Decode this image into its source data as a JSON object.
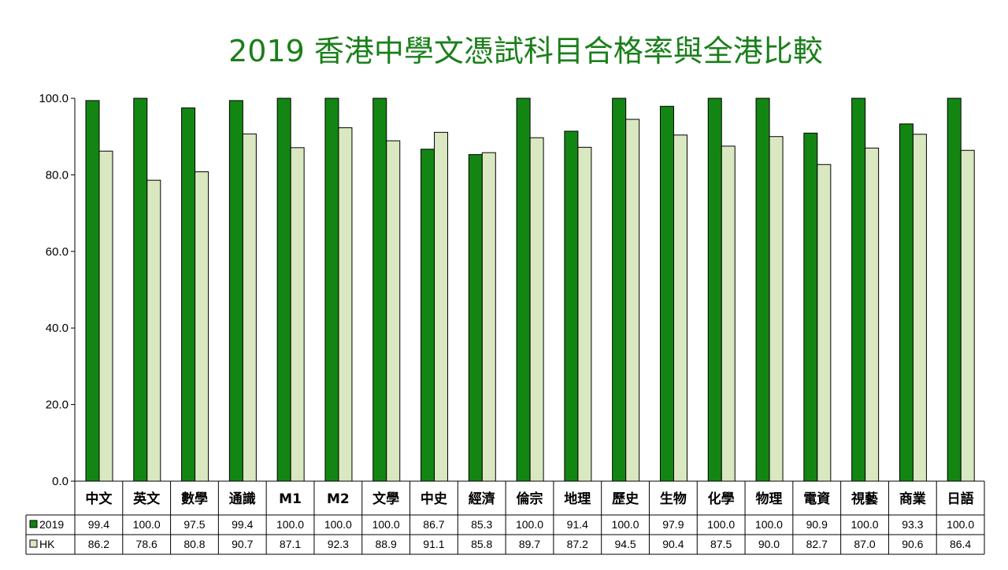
{
  "chart_data": {
    "type": "bar",
    "title": "2019  香港中學文憑試科目合格率與全港比較",
    "categories": [
      "中文",
      "英文",
      "數學",
      "通識",
      "M1",
      "M2",
      "文學",
      "中史",
      "經濟",
      "倫宗",
      "地理",
      "歷史",
      "生物",
      "化學",
      "物理",
      "電資",
      "視藝",
      "商業",
      "日語"
    ],
    "series": [
      {
        "name": "2019",
        "color": "#138513",
        "values": [
          99.4,
          100.0,
          97.5,
          99.4,
          100.0,
          100.0,
          100.0,
          86.7,
          85.3,
          100.0,
          91.4,
          100.0,
          97.9,
          100.0,
          100.0,
          90.9,
          100.0,
          93.3,
          100.0
        ]
      },
      {
        "name": "HK",
        "color": "#d9e8c0",
        "values": [
          86.2,
          78.6,
          80.8,
          90.7,
          87.1,
          92.3,
          88.9,
          91.1,
          85.8,
          89.7,
          87.2,
          94.5,
          90.4,
          87.5,
          90.0,
          82.7,
          87.0,
          90.6,
          86.4
        ]
      }
    ],
    "yticks": [
      "0.0",
      "20.0",
      "40.0",
      "60.0",
      "80.0",
      "100.0"
    ],
    "ylim": [
      0,
      100
    ],
    "grid": false,
    "legend": "data-table"
  }
}
